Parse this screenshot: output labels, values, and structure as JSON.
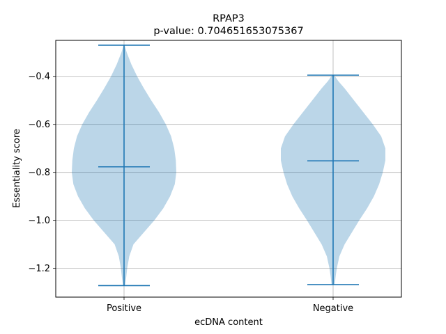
{
  "chart_data": {
    "type": "violin",
    "title": "RPAP3",
    "subtitle": "p-value: 0.704651653075367",
    "xlabel": "ecDNA content",
    "ylabel": "Essentiality score",
    "categories": [
      "Positive",
      "Negative"
    ],
    "ylim": [
      -1.32,
      -0.25
    ],
    "yticks": [
      -0.4,
      -0.6,
      -0.8,
      -1.0,
      -1.2
    ],
    "ytick_labels": [
      "−0.4",
      "−0.6",
      "−0.8",
      "−1.0",
      "−1.2"
    ],
    "grid": true,
    "violins": [
      {
        "category": "Positive",
        "min": -1.272,
        "max": -0.27,
        "median": -0.777,
        "density_profile": [
          [
            -1.272,
            0.02
          ],
          [
            -1.24,
            0.04
          ],
          [
            -1.2,
            0.06
          ],
          [
            -1.15,
            0.1
          ],
          [
            -1.1,
            0.18
          ],
          [
            -1.05,
            0.38
          ],
          [
            -1.0,
            0.58
          ],
          [
            -0.95,
            0.75
          ],
          [
            -0.9,
            0.88
          ],
          [
            -0.85,
            0.97
          ],
          [
            -0.8,
            1.0
          ],
          [
            -0.75,
            0.99
          ],
          [
            -0.7,
            0.96
          ],
          [
            -0.65,
            0.9
          ],
          [
            -0.6,
            0.8
          ],
          [
            -0.55,
            0.67
          ],
          [
            -0.5,
            0.52
          ],
          [
            -0.45,
            0.38
          ],
          [
            -0.4,
            0.25
          ],
          [
            -0.35,
            0.14
          ],
          [
            -0.3,
            0.05
          ],
          [
            -0.27,
            0.01
          ]
        ]
      },
      {
        "category": "Negative",
        "min": -1.268,
        "max": -0.395,
        "median": -0.752,
        "density_profile": [
          [
            -1.268,
            0.03
          ],
          [
            -1.23,
            0.05
          ],
          [
            -1.2,
            0.07
          ],
          [
            -1.15,
            0.12
          ],
          [
            -1.1,
            0.22
          ],
          [
            -1.05,
            0.36
          ],
          [
            -1.0,
            0.5
          ],
          [
            -0.95,
            0.65
          ],
          [
            -0.9,
            0.78
          ],
          [
            -0.85,
            0.88
          ],
          [
            -0.8,
            0.95
          ],
          [
            -0.75,
            1.0
          ],
          [
            -0.7,
            1.0
          ],
          [
            -0.65,
            0.92
          ],
          [
            -0.6,
            0.76
          ],
          [
            -0.55,
            0.58
          ],
          [
            -0.5,
            0.4
          ],
          [
            -0.45,
            0.22
          ],
          [
            -0.42,
            0.1
          ],
          [
            -0.395,
            0.02
          ]
        ]
      }
    ],
    "colors": {
      "body": "#1f77b4",
      "body_opacity": 0.3,
      "lines": "#1f77b4",
      "grid": "#b0b0b0",
      "axis": "#000000"
    }
  }
}
